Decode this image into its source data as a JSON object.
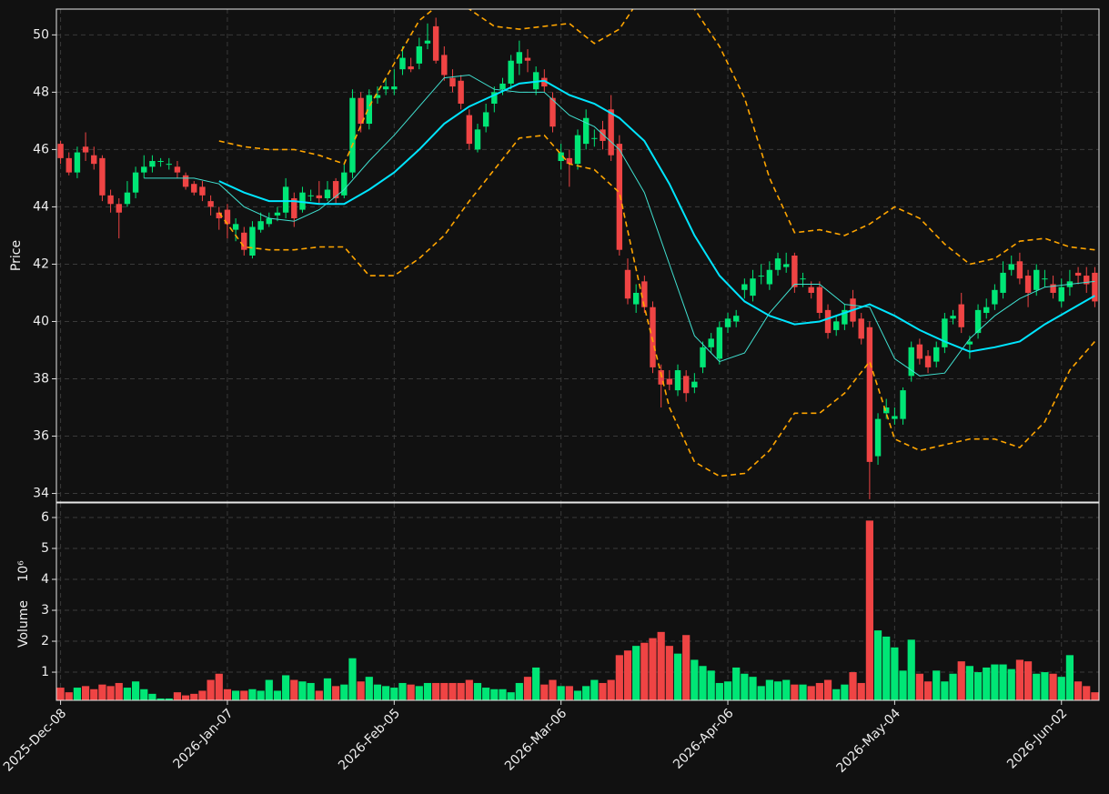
{
  "chart_data": [
    {
      "type": "candlestick",
      "ylabel": "Price",
      "up_color": "#00e676",
      "down_color": "#ef4444",
      "xlim": [
        -0.5,
        124.5
      ],
      "ylim": [
        33.7,
        50.9
      ],
      "yticks": [
        34,
        36,
        38,
        40,
        42,
        44,
        46,
        48,
        50
      ],
      "xticks": [
        0,
        20,
        40,
        60,
        80,
        100,
        120
      ],
      "grid": true,
      "open": [
        46.2,
        45.7,
        45.2,
        46.1,
        45.8,
        45.7,
        44.4,
        44.1,
        44.1,
        44.5,
        45.2,
        45.4,
        45.6,
        45.5,
        45.4,
        45.1,
        44.8,
        44.7,
        44.2,
        43.8,
        43.9,
        43.2,
        43.1,
        42.3,
        43.2,
        43.4,
        43.7,
        43.8,
        44.3,
        43.9,
        44.4,
        44.4,
        44.3,
        44.9,
        44.4,
        45.2,
        47.8,
        46.9,
        47.8,
        48.1,
        48.1,
        48.8,
        48.9,
        49.0,
        49.7,
        50.3,
        49.3,
        48.5,
        48.4,
        47.2,
        46.0,
        46.8,
        47.6,
        48.1,
        48.3,
        49.0,
        49.2,
        48.1,
        48.5,
        47.8,
        45.6,
        45.7,
        45.5,
        46.2,
        46.4,
        46.7,
        47.4,
        46.2,
        41.8,
        40.6,
        41.4,
        40.5,
        38.3,
        38.0,
        37.6,
        38.1,
        37.7,
        38.4,
        39.1,
        38.7,
        39.8,
        40.0,
        41.1,
        40.9,
        41.6,
        41.3,
        41.8,
        41.9,
        42.3,
        41.5,
        41.2,
        41.2,
        40.4,
        39.7,
        39.9,
        40.8,
        40.1,
        39.8,
        35.3,
        36.8,
        36.6,
        36.6,
        38.1,
        39.2,
        38.8,
        38.6,
        39.1,
        40.1,
        40.6,
        39.2,
        39.6,
        40.3,
        40.6,
        41.0,
        41.8,
        42.1,
        41.6,
        41.1,
        41.5,
        41.3,
        40.7,
        41.2,
        41.7,
        41.6,
        41.7
      ],
      "high": [
        46.3,
        45.9,
        46.1,
        46.6,
        46.1,
        45.8,
        44.6,
        44.3,
        44.9,
        45.4,
        45.8,
        45.8,
        45.7,
        45.7,
        45.6,
        45.2,
        44.9,
        44.9,
        44.4,
        44.0,
        44.1,
        43.6,
        43.3,
        43.5,
        43.8,
        43.8,
        44.0,
        45.0,
        44.5,
        44.7,
        44.6,
        44.9,
        44.9,
        45.0,
        45.5,
        48.1,
        48.0,
        48.1,
        48.2,
        48.5,
        48.8,
        49.6,
        49.2,
        49.9,
        50.4,
        50.6,
        49.6,
        48.8,
        48.6,
        47.4,
        46.9,
        47.6,
        48.2,
        48.5,
        49.3,
        49.8,
        49.5,
        48.9,
        48.8,
        48.0,
        46.2,
        46.0,
        46.7,
        47.4,
        46.7,
        47.0,
        47.9,
        46.5,
        42.2,
        41.3,
        41.6,
        40.7,
        38.5,
        38.3,
        38.5,
        38.3,
        38.2,
        39.3,
        39.6,
        40.0,
        40.3,
        40.4,
        41.5,
        41.8,
        42.0,
        42.1,
        42.4,
        42.4,
        42.4,
        41.7,
        41.4,
        41.4,
        40.6,
        40.2,
        40.6,
        41.1,
        40.3,
        40.0,
        36.8,
        37.3,
        37.0,
        37.7,
        39.3,
        39.4,
        39.0,
        39.3,
        40.3,
        40.4,
        41.0,
        39.5,
        40.6,
        40.8,
        41.3,
        42.1,
        42.3,
        42.4,
        41.8,
        42.0,
        41.8,
        41.6,
        41.5,
        41.8,
        41.9,
        41.9,
        41.9
      ],
      "low": [
        45.5,
        45.1,
        45.0,
        45.6,
        45.3,
        44.2,
        43.8,
        42.9,
        44.0,
        44.3,
        45.0,
        45.2,
        45.4,
        45.3,
        45.0,
        44.6,
        44.4,
        44.2,
        43.7,
        43.2,
        42.9,
        42.8,
        42.3,
        42.2,
        43.1,
        43.3,
        43.5,
        43.6,
        43.3,
        43.8,
        44.2,
        44.1,
        44.2,
        44.1,
        44.3,
        45.0,
        46.6,
        46.7,
        47.6,
        47.9,
        47.9,
        48.6,
        48.7,
        48.8,
        49.5,
        49.0,
        48.4,
        48.0,
        47.4,
        46.0,
        45.9,
        46.6,
        47.3,
        47.9,
        48.1,
        48.6,
        48.7,
        47.9,
        48.0,
        46.6,
        45.3,
        44.7,
        45.3,
        46.0,
        46.1,
        46.0,
        45.6,
        42.3,
        40.6,
        40.3,
        40.3,
        38.2,
        37.0,
        37.6,
        37.4,
        37.2,
        37.5,
        38.2,
        38.9,
        38.5,
        39.6,
        39.8,
        40.8,
        40.7,
        41.3,
        41.1,
        41.6,
        41.7,
        41.0,
        41.2,
        40.8,
        40.1,
        39.4,
        39.5,
        39.7,
        39.8,
        39.2,
        33.8,
        35.0,
        36.6,
        36.4,
        36.4,
        37.9,
        38.5,
        38.2,
        38.4,
        38.9,
        39.9,
        39.6,
        38.7,
        39.4,
        40.1,
        40.4,
        40.8,
        41.6,
        41.3,
        40.5,
        40.9,
        41.2,
        40.8,
        40.5,
        40.9,
        41.3,
        41.0,
        40.5
      ],
      "close": [
        45.7,
        45.2,
        45.9,
        45.9,
        45.5,
        44.4,
        44.1,
        43.8,
        44.5,
        45.2,
        45.4,
        45.6,
        45.6,
        45.5,
        45.2,
        44.7,
        44.5,
        44.4,
        44.0,
        43.6,
        43.4,
        43.4,
        42.5,
        43.3,
        43.5,
        43.6,
        43.8,
        44.7,
        43.6,
        44.5,
        44.4,
        44.3,
        44.6,
        44.3,
        45.2,
        47.8,
        46.9,
        47.9,
        47.9,
        48.2,
        48.2,
        49.2,
        48.8,
        49.6,
        49.8,
        49.1,
        48.6,
        48.2,
        47.6,
        46.2,
        46.7,
        47.3,
        48.0,
        48.3,
        49.1,
        49.4,
        49.1,
        48.7,
        48.2,
        46.8,
        45.9,
        45.5,
        46.5,
        47.1,
        46.4,
        46.3,
        45.8,
        42.5,
        40.8,
        41.0,
        40.5,
        38.4,
        37.8,
        37.8,
        38.3,
        37.5,
        37.9,
        39.1,
        39.4,
        39.8,
        40.1,
        40.2,
        41.3,
        41.5,
        41.6,
        41.8,
        42.2,
        42.0,
        41.2,
        41.5,
        41.0,
        40.3,
        39.6,
        40.0,
        40.4,
        40.0,
        39.4,
        35.1,
        36.6,
        37.0,
        36.7,
        37.6,
        39.1,
        38.7,
        38.4,
        39.1,
        40.1,
        40.2,
        39.8,
        39.3,
        40.4,
        40.5,
        41.1,
        41.7,
        42.0,
        41.5,
        41.0,
        41.8,
        41.5,
        41.0,
        41.2,
        41.4,
        41.6,
        41.3,
        40.7
      ],
      "overlays": {
        "x": [
          10,
          13,
          16,
          19,
          22,
          25,
          28,
          31,
          34,
          37,
          40,
          43,
          46,
          49,
          52,
          55,
          58,
          61,
          64,
          67,
          70,
          73,
          76,
          79,
          82,
          85,
          88,
          91,
          94,
          97,
          100,
          103,
          106,
          109,
          112,
          115,
          118,
          121,
          124
        ],
        "series": [
          {
            "color": "#40e0d0",
            "width": 1,
            "dash": false,
            "values": [
              45.0,
              45.0,
              45.0,
              44.8,
              44.0,
              43.6,
              43.5,
              43.9,
              44.6,
              45.6,
              46.5,
              47.5,
              48.5,
              48.6,
              48.1,
              48.0,
              48.0,
              47.2,
              46.8,
              46.0,
              44.5,
              42.0,
              39.5,
              38.6,
              38.9,
              40.3,
              41.3,
              41.3,
              40.6,
              40.5,
              38.7,
              38.1,
              38.2,
              39.4,
              40.2,
              40.8,
              41.2,
              41.3,
              41.4
            ]
          },
          {
            "color": "#00e5ff",
            "width": 2,
            "dash": false,
            "values": [
              null,
              null,
              null,
              44.9,
              44.5,
              44.2,
              44.2,
              44.1,
              44.1,
              44.6,
              45.2,
              46.0,
              46.9,
              47.5,
              47.9,
              48.3,
              48.4,
              47.9,
              47.6,
              47.1,
              46.3,
              44.8,
              43.0,
              41.6,
              40.7,
              40.2,
              39.9,
              40.0,
              40.3,
              40.6,
              40.2,
              39.7,
              39.3,
              38.95,
              39.1,
              39.3,
              39.9,
              40.4,
              40.9
            ]
          },
          {
            "color": "#ffa500",
            "width": 1.6,
            "dash": true,
            "values": [
              null,
              null,
              null,
              46.3,
              46.1,
              46.0,
              46.0,
              45.8,
              45.5,
              47.5,
              49.0,
              50.5,
              51.2,
              50.9,
              50.3,
              50.2,
              50.3,
              50.4,
              49.7,
              50.2,
              51.5,
              51.3,
              50.9,
              49.6,
              47.8,
              45.0,
              43.1,
              43.2,
              43.0,
              43.4,
              44.0,
              43.6,
              42.7,
              42.0,
              42.2,
              42.8,
              42.9,
              42.6,
              42.5
            ]
          },
          {
            "color": "#ffa500",
            "width": 1.6,
            "dash": true,
            "values": [
              null,
              null,
              null,
              43.8,
              42.6,
              42.5,
              42.5,
              42.6,
              42.6,
              41.6,
              41.6,
              42.2,
              43.0,
              44.2,
              45.3,
              46.4,
              46.5,
              45.5,
              45.3,
              44.5,
              40.5,
              37.0,
              35.1,
              34.6,
              34.7,
              35.5,
              36.8,
              36.8,
              37.5,
              38.6,
              35.9,
              35.5,
              35.7,
              35.9,
              35.9,
              35.6,
              36.5,
              38.3,
              39.3
            ]
          }
        ]
      }
    },
    {
      "type": "bar",
      "ylabel": "Volume",
      "offset_label": "10⁶",
      "xlim": [
        -0.5,
        124.5
      ],
      "ylim": [
        0.09,
        6.47
      ],
      "yticks": [
        1,
        2,
        3,
        4,
        5,
        6
      ],
      "grid": true,
      "xticks": [
        {
          "value": 0,
          "label": "2025-Dec-08"
        },
        {
          "value": 20,
          "label": "2026-Jan-07"
        },
        {
          "value": 40,
          "label": "2026-Feb-05"
        },
        {
          "value": 60,
          "label": "2026-Mar-06"
        },
        {
          "value": 80,
          "label": "2026-Apr-06"
        },
        {
          "value": 100,
          "label": "2026-May-04"
        },
        {
          "value": 120,
          "label": "2026-Jun-02"
        }
      ],
      "values": [
        0.5,
        0.35,
        0.5,
        0.55,
        0.45,
        0.6,
        0.55,
        0.65,
        0.5,
        0.7,
        0.45,
        0.3,
        0.15,
        0.15,
        0.35,
        0.25,
        0.3,
        0.4,
        0.75,
        0.95,
        0.45,
        0.4,
        0.4,
        0.45,
        0.4,
        0.75,
        0.4,
        0.9,
        0.75,
        0.7,
        0.65,
        0.4,
        0.8,
        0.55,
        0.6,
        1.45,
        0.7,
        0.85,
        0.6,
        0.55,
        0.5,
        0.65,
        0.6,
        0.55,
        0.65,
        0.65,
        0.65,
        0.65,
        0.65,
        0.75,
        0.65,
        0.5,
        0.45,
        0.45,
        0.35,
        0.65,
        0.85,
        1.15,
        0.6,
        0.75,
        0.55,
        0.55,
        0.4,
        0.55,
        0.75,
        0.65,
        0.75,
        1.55,
        1.7,
        1.85,
        1.95,
        2.1,
        2.3,
        1.85,
        1.6,
        2.2,
        1.4,
        1.2,
        1.05,
        0.65,
        0.7,
        1.15,
        0.95,
        0.85,
        0.55,
        0.75,
        0.7,
        0.75,
        0.6,
        0.6,
        0.55,
        0.65,
        0.75,
        0.45,
        0.6,
        1.0,
        0.65,
        5.9,
        2.35,
        2.15,
        1.8,
        1.05,
        2.05,
        0.95,
        0.7,
        1.05,
        0.7,
        0.95,
        1.35,
        1.2,
        1.0,
        1.15,
        1.25,
        1.25,
        1.1,
        1.4,
        1.35,
        0.95,
        1.0,
        0.95,
        0.85,
        1.55,
        0.7,
        0.55,
        0.35
      ]
    }
  ]
}
